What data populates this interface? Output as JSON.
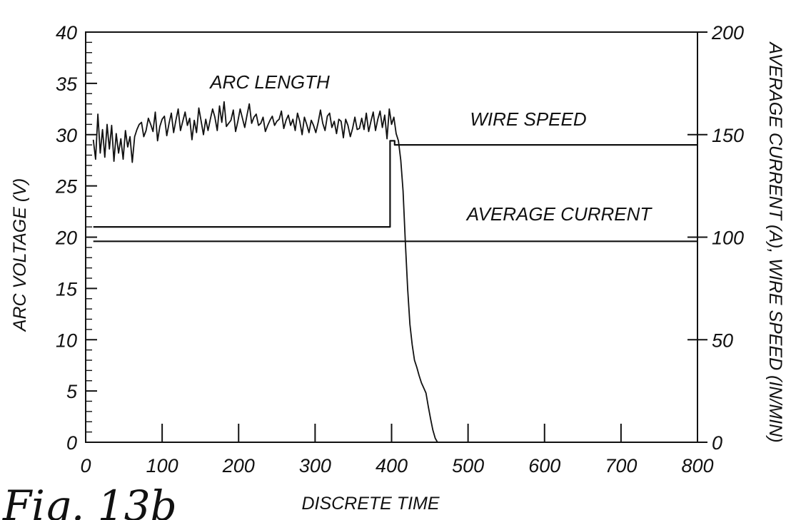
{
  "figure_label": "Fig. 13b",
  "chart_data": {
    "type": "line",
    "xlabel": "DISCRETE TIME",
    "ylabel": "ARC VOLTAGE (V)",
    "ylabel_right": "AVERAGE CURRENT (A), WIRE SPEED (IN/MIN)",
    "xlim": [
      0,
      800
    ],
    "ylim": [
      0,
      40
    ],
    "ylim_right": [
      0,
      200
    ],
    "x_ticks": [
      "0",
      "100",
      "200",
      "300",
      "400",
      "500",
      "600",
      "700",
      "800"
    ],
    "y_ticks": [
      "0",
      "5",
      "10",
      "15",
      "20",
      "25",
      "30",
      "35",
      "40"
    ],
    "y_ticks_right": [
      "0",
      "50",
      "100",
      "150",
      "200"
    ],
    "grid": false,
    "annotations": [
      "ARC LENGTH",
      "WIRE SPEED",
      "AVERAGE CURRENT"
    ],
    "series": [
      {
        "name": "ARC LENGTH",
        "axis": "left",
        "x": [
          10,
          13,
          16,
          19,
          22,
          25,
          28,
          31,
          34,
          37,
          40,
          43,
          46,
          49,
          52,
          55,
          58,
          61,
          64,
          67,
          70,
          73,
          76,
          79,
          82,
          85,
          88,
          91,
          94,
          97,
          100,
          103,
          106,
          109,
          112,
          115,
          118,
          121,
          124,
          127,
          130,
          133,
          136,
          139,
          142,
          145,
          148,
          151,
          154,
          157,
          160,
          163,
          166,
          169,
          172,
          175,
          178,
          181,
          184,
          187,
          190,
          193,
          196,
          199,
          202,
          205,
          208,
          211,
          214,
          217,
          220,
          223,
          226,
          229,
          232,
          235,
          238,
          241,
          244,
          247,
          250,
          253,
          256,
          259,
          262,
          265,
          268,
          271,
          274,
          277,
          280,
          283,
          286,
          289,
          292,
          295,
          298,
          301,
          304,
          307,
          310,
          313,
          316,
          319,
          322,
          325,
          328,
          331,
          334,
          337,
          340,
          343,
          346,
          349,
          352,
          355,
          358,
          361,
          364,
          367,
          370,
          373,
          376,
          379,
          382,
          385,
          388,
          391,
          394,
          397,
          400,
          403,
          406,
          409,
          412,
          415,
          418,
          421,
          424,
          427,
          430,
          433,
          436,
          439,
          442,
          445,
          448,
          451,
          454,
          457,
          460
        ],
        "y": [
          29.5,
          27.6,
          32,
          28.2,
          30.5,
          27.8,
          31,
          28.6,
          30.9,
          27.4,
          30.1,
          28.2,
          29.6,
          27.6,
          30.4,
          28.8,
          29.8,
          27.3,
          29.8,
          30.5,
          31,
          31.2,
          29.8,
          30.4,
          31.6,
          31,
          30.3,
          32.2,
          29.4,
          30.8,
          31.5,
          31.8,
          29.9,
          31.1,
          32.1,
          30.2,
          31.4,
          32.5,
          30.4,
          31.3,
          32.2,
          30.9,
          31.6,
          29.5,
          31.4,
          30.2,
          32.6,
          31.3,
          30,
          31.5,
          30.4,
          31.5,
          32.5,
          31.7,
          30.4,
          32.8,
          31.2,
          33.2,
          30.8,
          31.1,
          31.4,
          32.4,
          30.3,
          31.3,
          32.5,
          31.6,
          30.7,
          31.9,
          33,
          31.1,
          31.7,
          32,
          30.9,
          31.1,
          31.7,
          30.3,
          30.9,
          31.4,
          31.8,
          30.9,
          31.3,
          31.5,
          32.3,
          30.6,
          31.4,
          31.9,
          30.9,
          31.5,
          30.4,
          32.1,
          31.3,
          30,
          31.7,
          31,
          30.2,
          31.4,
          30.9,
          30.2,
          31.2,
          32.4,
          31.1,
          30.4,
          31.8,
          32.1,
          30.7,
          31.3,
          30.1,
          31.5,
          31.3,
          29.7,
          31.5,
          30.9,
          29.8,
          30.6,
          31.7,
          30.5,
          30.6,
          31.6,
          30.5,
          32.1,
          30.3,
          31.3,
          32.2,
          30.4,
          31.5,
          32.3,
          30.7,
          31.9,
          29.6,
          32.5,
          31,
          31.7,
          30.1,
          29.4,
          27.5,
          24.5,
          19.5,
          15,
          11.5,
          9.5,
          8,
          7.3,
          6.5,
          5.8,
          5.3,
          4.8,
          3.5,
          2.3,
          1.2,
          0.4,
          0
        ],
        "color": "#111111"
      },
      {
        "name": "WIRE SPEED",
        "axis": "right",
        "x": [
          10,
          398,
          398,
          404,
          404,
          800
        ],
        "y": [
          105,
          105,
          147,
          147,
          145,
          145
        ],
        "color": "#111111"
      },
      {
        "name": "AVERAGE CURRENT",
        "axis": "right",
        "x": [
          10,
          800
        ],
        "y": [
          98,
          98
        ],
        "color": "#111111"
      }
    ]
  }
}
